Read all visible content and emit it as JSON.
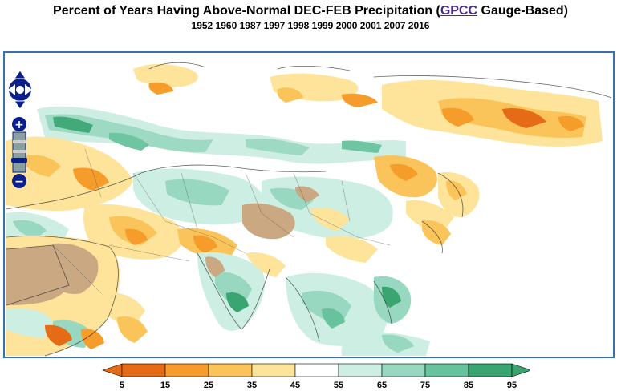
{
  "header": {
    "title_prefix": "Percent of Years Having Above-Normal DEC-FEB Precipitation (",
    "title_link": "GPCC",
    "title_suffix": " Gauge-Based)",
    "years": "1952 1960 1987 1997 1998 1999 2000 2001 2007 2016"
  },
  "map": {
    "controls": {
      "pan": "pan-control",
      "zoom_in_label": "+",
      "zoom_out_label": "−"
    }
  },
  "legend": {
    "ticks": [
      "5",
      "15",
      "25",
      "35",
      "45",
      "55",
      "65",
      "75",
      "85",
      "95"
    ],
    "colors": [
      "#e66b16",
      "#f59c2b",
      "#fbc45a",
      "#fde49a",
      "#ffffff",
      "#cdeee2",
      "#98d8c0",
      "#68c29e",
      "#3aa571"
    ]
  },
  "colors": {
    "dry_strong": "#e66b16",
    "dry": "#f59c2b",
    "dry_light": "#fbc45a",
    "dry_faint": "#fde49a",
    "wet_faint": "#cdeee2",
    "wet": "#98d8c0",
    "wet_strong": "#68c29e",
    "wet_deep": "#3aa571",
    "desert_mask": "#c9a882",
    "frame": "#3a6fb0",
    "link": "#4b2a8a"
  }
}
